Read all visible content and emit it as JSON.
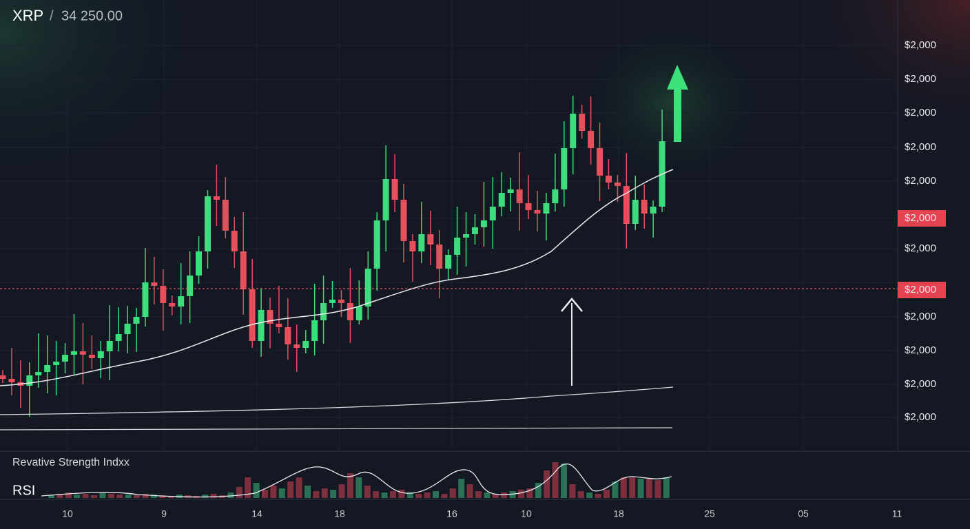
{
  "header": {
    "symbol": "XRP",
    "separator": "/",
    "price": "34 250.00"
  },
  "price_axis": [
    {
      "label": "$2,000"
    },
    {
      "label": "$2,000"
    },
    {
      "label": "$2,000"
    },
    {
      "label": "$2,000"
    },
    {
      "label": "$2,000"
    },
    {
      "label": "$2,000",
      "highlighted": true
    },
    {
      "label": "$2,000"
    },
    {
      "label": "$2,000",
      "highlighted": true
    },
    {
      "label": "$2,000"
    },
    {
      "label": "$2,000"
    },
    {
      "label": "$2,000"
    },
    {
      "label": "$2,000"
    }
  ],
  "indicator": {
    "title": "Revative Strength Indxx",
    "name": "RSI"
  },
  "time_axis": [
    "10",
    "9",
    "14",
    "18",
    "16",
    "10",
    "18",
    "25",
    "05",
    "11"
  ]
}
